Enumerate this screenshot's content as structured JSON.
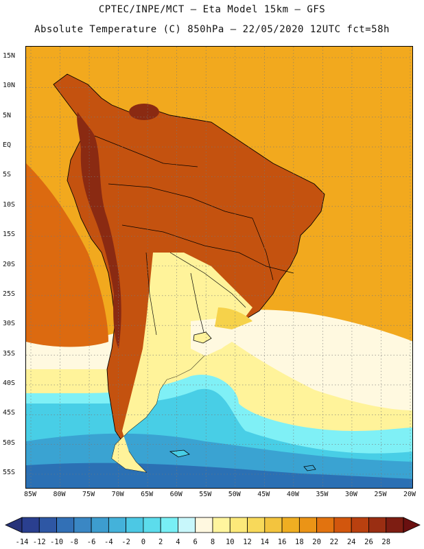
{
  "header": {
    "title_line1": "CPTEC/INPE/MCT –  Eta Model 15km – GFS",
    "title_line2": "Absolute Temperature (C) 850hPa – 22/05/2020 12UTC fct=58h"
  },
  "map": {
    "lat_ticks": [
      "15N",
      "10N",
      "5N",
      "EQ",
      "5S",
      "10S",
      "15S",
      "20S",
      "25S",
      "30S",
      "35S",
      "40S",
      "45S",
      "50S",
      "55S"
    ],
    "lon_ticks": [
      "85W",
      "80W",
      "75W",
      "70W",
      "65W",
      "60W",
      "55W",
      "50W",
      "45W",
      "40W",
      "35W",
      "30W",
      "25W",
      "20W"
    ],
    "grid": true,
    "colors": {
      "ocean_north": "#f2a91e",
      "tropical_land": "#c4520f",
      "andes_hot": "#8a2a12",
      "warm_orange": "#dc6a10",
      "mid_yellow": "#f6d24a",
      "pale_yellow": "#fff39a",
      "cream": "#fff9e0",
      "cyan_light": "#7ff0f6",
      "cyan": "#48cee6",
      "blue_mid": "#3aa3d2",
      "blue_dark": "#2b70b4",
      "border_line": "#000000"
    }
  },
  "colorbar": {
    "tick_labels": [
      "-14",
      "-12",
      "-10",
      "-8",
      "-6",
      "-4",
      "-2",
      "0",
      "2",
      "4",
      "6",
      "8",
      "10",
      "12",
      "14",
      "16",
      "18",
      "20",
      "22",
      "24",
      "26",
      "28"
    ],
    "colors": [
      "#2a3f8f",
      "#2e57a4",
      "#3270b6",
      "#3a87c4",
      "#3d9dcf",
      "#44b2da",
      "#4cc8e4",
      "#5cdcec",
      "#78eff5",
      "#c8f7fb",
      "#fff8e0",
      "#fff59e",
      "#fce97a",
      "#f8d95a",
      "#f3c43e",
      "#efae22",
      "#eb9416",
      "#e2730f",
      "#d2560d",
      "#b9400f",
      "#9a2e12",
      "#7d1d12"
    ],
    "low_arrow_color": "#27337a",
    "high_arrow_color": "#6a1010",
    "unit": "C"
  }
}
